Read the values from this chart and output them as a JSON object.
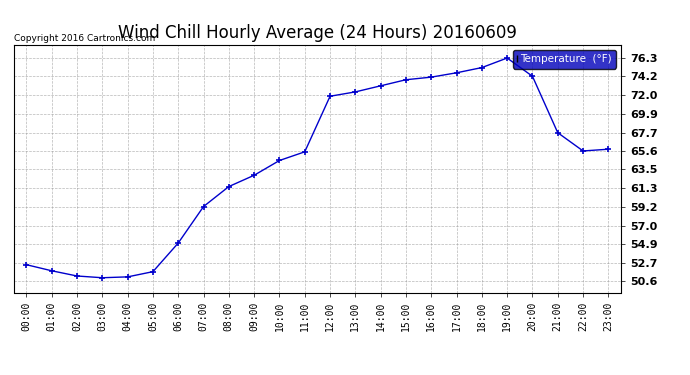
{
  "title": "Wind Chill Hourly Average (24 Hours) 20160609",
  "copyright": "Copyright 2016 Cartronics.com",
  "legend_label": "Temperature  (°F)",
  "x_labels": [
    "00:00",
    "01:00",
    "02:00",
    "03:00",
    "04:00",
    "05:00",
    "06:00",
    "07:00",
    "08:00",
    "09:00",
    "10:00",
    "11:00",
    "12:00",
    "13:00",
    "14:00",
    "15:00",
    "16:00",
    "17:00",
    "18:00",
    "19:00",
    "20:00",
    "21:00",
    "22:00",
    "23:00"
  ],
  "y_values": [
    52.5,
    51.8,
    51.2,
    51.0,
    51.1,
    51.7,
    55.0,
    59.2,
    61.5,
    62.8,
    64.5,
    65.5,
    71.9,
    72.4,
    73.1,
    73.8,
    74.1,
    74.6,
    75.2,
    76.3,
    74.2,
    67.7,
    65.6,
    65.8
  ],
  "line_color": "#0000cc",
  "marker_color": "#0000cc",
  "bg_color": "#ffffff",
  "grid_color": "#999999",
  "yticks": [
    50.6,
    52.7,
    54.9,
    57.0,
    59.2,
    61.3,
    63.5,
    65.6,
    67.7,
    69.9,
    72.0,
    74.2,
    76.3
  ],
  "ylim": [
    49.3,
    77.8
  ],
  "title_fontsize": 12,
  "legend_bg": "#0000bb",
  "legend_text_color": "#ffffff"
}
